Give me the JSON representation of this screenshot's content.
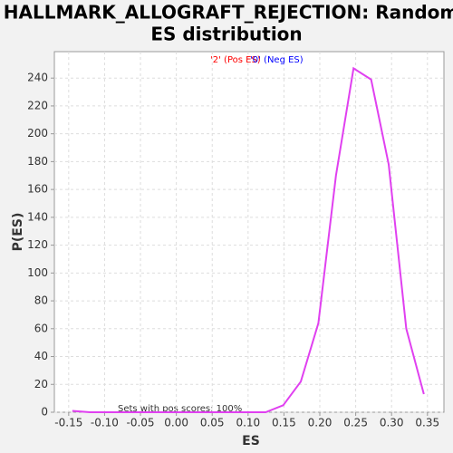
{
  "chart_data": {
    "type": "line",
    "title": [
      "HALLMARK_ALLOGRAFT_REJECTION: Random",
      "ES distribution"
    ],
    "x_label": "ES",
    "y_label": "P(ES)",
    "legend": [
      {
        "text": "'2' (Pos ES)",
        "color": "#ff0000"
      },
      {
        "text": "'0' (Neg ES)",
        "color": "#0000ff"
      }
    ],
    "annotation": "Sets with pos scores: 100%",
    "x": [
      -0.145,
      -0.1205,
      -0.096,
      -0.0715,
      -0.047,
      -0.0225,
      0.002,
      0.0265,
      0.051,
      0.0755,
      0.1,
      0.1245,
      0.149,
      0.1735,
      0.198,
      0.2225,
      0.247,
      0.2715,
      0.296,
      0.3205,
      0.345
    ],
    "series": [
      {
        "name": "ES",
        "color": "#e040f0",
        "values": [
          1,
          0,
          0,
          0,
          0,
          0,
          0,
          0,
          0,
          0,
          0,
          0,
          5,
          22,
          64,
          170,
          247,
          239,
          178,
          60,
          13
        ]
      }
    ],
    "xlim": [
      -0.17,
      0.373
    ],
    "ylim": [
      0,
      259
    ],
    "xticks": [
      -0.15,
      {
        "value": -0.1,
        "label": "-0.10"
      },
      -0.05,
      {
        "value": 0,
        "label": "0.00"
      },
      0.05,
      {
        "value": 0.1,
        "label": "0.10"
      },
      0.15,
      {
        "value": 0.2,
        "label": "0.20"
      },
      0.25,
      {
        "value": 0.3,
        "label": "0.30"
      },
      0.35
    ],
    "yticks": [
      0,
      20,
      40,
      60,
      80,
      100,
      120,
      140,
      160,
      180,
      200,
      220,
      240
    ],
    "grid": true
  }
}
